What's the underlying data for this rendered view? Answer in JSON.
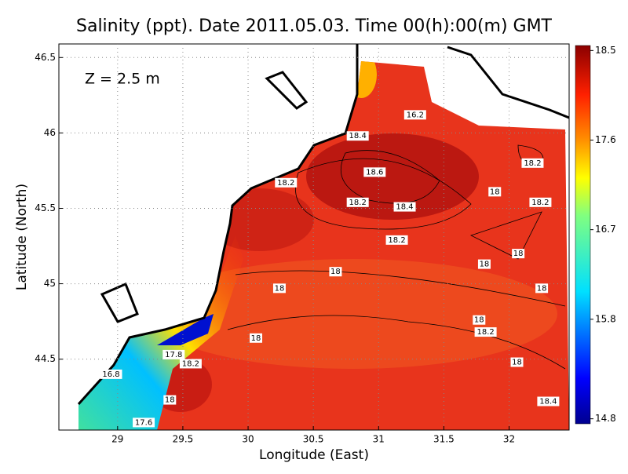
{
  "chart_data": {
    "type": "map",
    "title": "Salinity (ppt). Date 2011.05.03. Time 00(h):00(m) GMT",
    "annotation": "Z = 2.5 m",
    "x_label": "Longitude (East)",
    "y_label": "Latitude (North)",
    "xlim": [
      28.55,
      32.46
    ],
    "ylim": [
      44.03,
      46.59
    ],
    "xticks": [
      29,
      29.5,
      30,
      30.5,
      31,
      31.5,
      32
    ],
    "yticks": [
      44.5,
      45,
      45.5,
      46,
      46.5
    ],
    "grid": true,
    "clim": [
      14.75,
      18.55
    ],
    "cticks": [
      14.8,
      15.8,
      16.7,
      17.6,
      18.5
    ],
    "contour_labels": [
      {
        "lon": 31.28,
        "lat": 46.12,
        "value": 16.2
      },
      {
        "lon": 30.84,
        "lat": 45.98,
        "value": 18.4
      },
      {
        "lon": 30.97,
        "lat": 45.74,
        "value": 18.6
      },
      {
        "lon": 30.29,
        "lat": 45.67,
        "value": 18.2
      },
      {
        "lon": 30.84,
        "lat": 45.54,
        "value": 18.2
      },
      {
        "lon": 31.2,
        "lat": 45.51,
        "value": 18.4
      },
      {
        "lon": 32.18,
        "lat": 45.8,
        "value": 18.2
      },
      {
        "lon": 31.89,
        "lat": 45.61,
        "value": 18
      },
      {
        "lon": 32.24,
        "lat": 45.54,
        "value": 18.2
      },
      {
        "lon": 31.14,
        "lat": 45.29,
        "value": 18.2
      },
      {
        "lon": 32.07,
        "lat": 45.2,
        "value": 18
      },
      {
        "lon": 31.81,
        "lat": 45.13,
        "value": 18
      },
      {
        "lon": 30.67,
        "lat": 45.08,
        "value": 18
      },
      {
        "lon": 30.24,
        "lat": 44.97,
        "value": 18
      },
      {
        "lon": 32.25,
        "lat": 44.97,
        "value": 18
      },
      {
        "lon": 31.77,
        "lat": 44.76,
        "value": 18
      },
      {
        "lon": 31.82,
        "lat": 44.68,
        "value": 18.2
      },
      {
        "lon": 30.06,
        "lat": 44.64,
        "value": 18
      },
      {
        "lon": 32.06,
        "lat": 44.48,
        "value": 18
      },
      {
        "lon": 29.43,
        "lat": 44.53,
        "value": 17.8
      },
      {
        "lon": 29.56,
        "lat": 44.47,
        "value": 18.2
      },
      {
        "lon": 28.95,
        "lat": 44.4,
        "value": 16.8
      },
      {
        "lon": 29.4,
        "lat": 44.23,
        "value": 18
      },
      {
        "lon": 32.3,
        "lat": 44.22,
        "value": 18.4
      },
      {
        "lon": 29.2,
        "lat": 44.08,
        "value": 17.6
      }
    ]
  }
}
